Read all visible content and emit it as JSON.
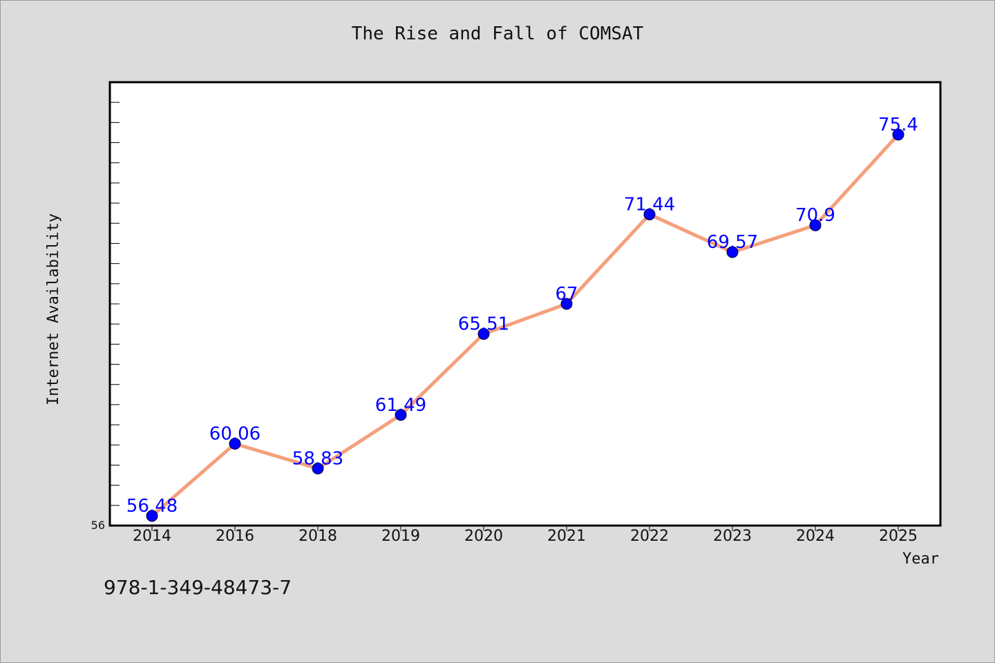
{
  "chart_data": {
    "type": "line",
    "title": "The Rise and Fall of COMSAT",
    "xlabel": "Year",
    "ylabel": "Internet Availability",
    "categories": [
      "2014",
      "2016",
      "2018",
      "2019",
      "2020",
      "2021",
      "2022",
      "2023",
      "2024",
      "2025"
    ],
    "series": [
      {
        "values": [
          56.48,
          60.06,
          58.83,
          61.49,
          65.51,
          67,
          71.44,
          69.57,
          70.9,
          75.4
        ],
        "line_color": "#f4a07c",
        "marker_color": "#0000ff",
        "label_color": "#0000ff"
      }
    ],
    "ylim": [
      56,
      78
    ],
    "y_tick_labels": [
      "56"
    ],
    "grid": false,
    "legend": "none"
  },
  "footer_text": "978-1-349-48473-7"
}
